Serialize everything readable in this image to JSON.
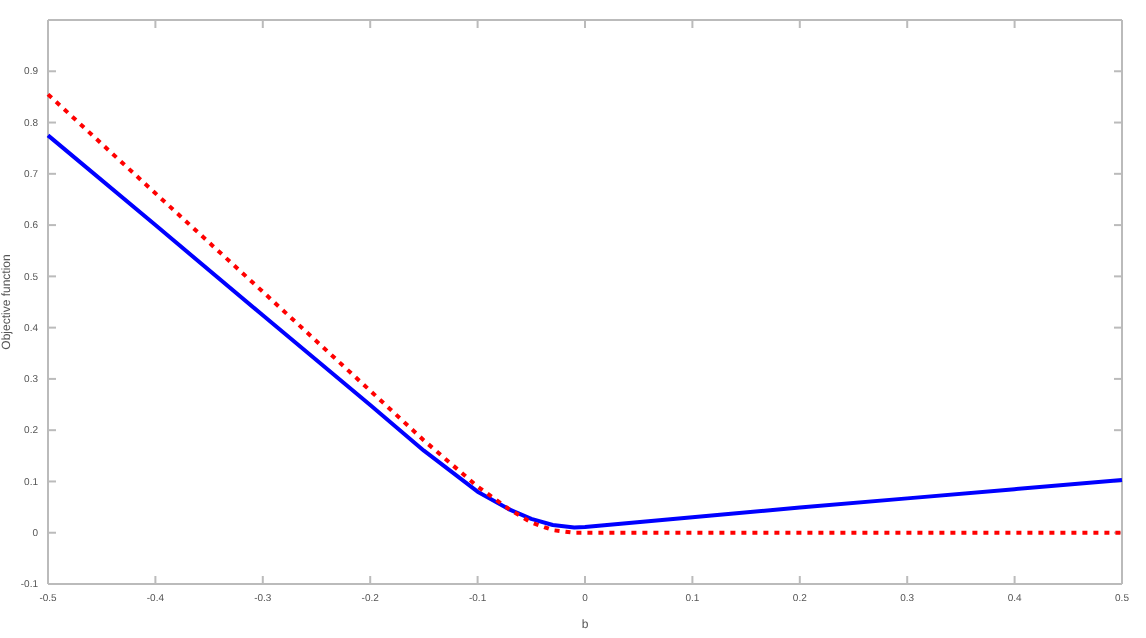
{
  "chart_data": {
    "type": "line",
    "xlabel": "b",
    "ylabel": "Objective function",
    "xlim": [
      -0.5,
      0.5
    ],
    "xticks": [
      -0.5,
      -0.4,
      -0.3,
      -0.2,
      -0.1,
      0,
      0.1,
      0.2,
      0.3,
      0.4,
      0.5
    ],
    "ylim": [
      -0.1,
      1.0
    ],
    "yticks": [
      -0.1,
      0,
      0.1,
      0.2,
      0.3,
      0.4,
      0.5,
      0.6,
      0.7,
      0.8,
      0.9
    ],
    "grid": false,
    "series": [
      {
        "color": "#0000ff",
        "line_style": "solid",
        "x": [
          -0.5,
          -0.4,
          -0.3,
          -0.2,
          -0.15,
          -0.1,
          -0.07,
          -0.05,
          -0.03,
          -0.01,
          0,
          0.1,
          0.2,
          0.3,
          0.4,
          0.5
        ],
        "values": [
          0.775,
          0.6,
          0.424,
          0.249,
          0.16,
          0.08,
          0.045,
          0.027,
          0.015,
          0.01,
          0.011,
          0.03,
          0.049,
          0.067,
          0.085,
          0.103
        ]
      },
      {
        "color": "#ff0000",
        "line_style": "dotted",
        "x": [
          -0.5,
          -0.4,
          -0.3,
          -0.2,
          -0.15,
          -0.1,
          -0.07,
          -0.05,
          -0.03,
          -0.01,
          0,
          0.5
        ],
        "values": [
          0.855,
          0.662,
          0.47,
          0.277,
          0.18,
          0.09,
          0.045,
          0.02,
          0.005,
          0,
          0,
          0
        ]
      }
    ]
  }
}
